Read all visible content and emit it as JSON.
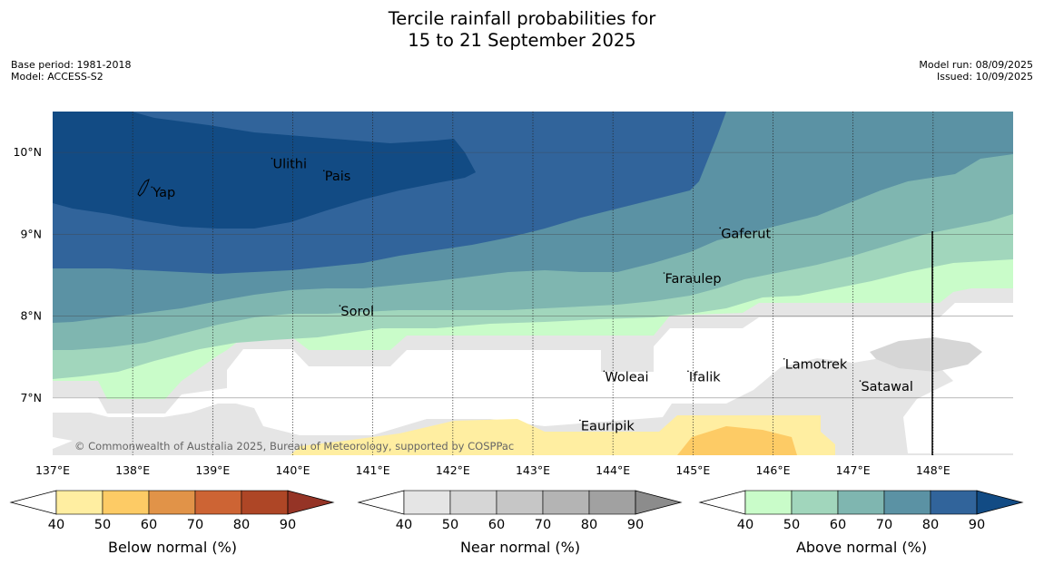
{
  "title": {
    "line1": "Tercile rainfall probabilities for",
    "line2": "15 to 21 September 2025"
  },
  "meta": {
    "base_period": "Base period: 1981-2018",
    "model": "Model: ACCESS-S2",
    "model_run": "Model run: 08/09/2025",
    "issued": "Issued: 10/09/2025"
  },
  "map": {
    "lon_range": [
      137,
      149
    ],
    "lat_range": [
      6.3,
      10.5
    ],
    "lon_ticks": [
      "137°E",
      "138°E",
      "139°E",
      "140°E",
      "141°E",
      "142°E",
      "143°E",
      "144°E",
      "145°E",
      "146°E",
      "147°E",
      "148°E"
    ],
    "lat_ticks": [
      "10°N",
      "9°N",
      "8°N",
      "7°N"
    ],
    "places": [
      {
        "name": "Ulithi",
        "lon": 139.75,
        "lat": 9.85
      },
      {
        "name": "Pais",
        "lon": 140.4,
        "lat": 9.7
      },
      {
        "name": "Yap",
        "lon": 138.25,
        "lat": 9.5
      },
      {
        "name": "Gaferut",
        "lon": 145.35,
        "lat": 9.0
      },
      {
        "name": "Faraulep",
        "lon": 144.65,
        "lat": 8.45
      },
      {
        "name": "Sorol",
        "lon": 140.6,
        "lat": 8.05
      },
      {
        "name": "Woleai",
        "lon": 143.9,
        "lat": 7.25
      },
      {
        "name": "Ifalik",
        "lon": 144.95,
        "lat": 7.25
      },
      {
        "name": "Lamotrek",
        "lon": 146.15,
        "lat": 7.4
      },
      {
        "name": "Satawal",
        "lon": 147.1,
        "lat": 7.13
      },
      {
        "name": "Eauripik",
        "lon": 143.6,
        "lat": 6.65
      }
    ],
    "copyright": "© Commonwealth of Australia 2025, Bureau of Meteorology, supported by COSPPac"
  },
  "legends": [
    {
      "name": "Below normal (%)",
      "ticks": [
        "40",
        "50",
        "60",
        "70",
        "80",
        "90"
      ],
      "colors": [
        "#ffeea1",
        "#fdcb65",
        "#e19348",
        "#cd6434",
        "#ae4626",
        "#953426"
      ]
    },
    {
      "name": "Near normal (%)",
      "ticks": [
        "40",
        "50",
        "60",
        "70",
        "80",
        "90"
      ],
      "colors": [
        "#e5e5e5",
        "#d6d6d6",
        "#c6c6c6",
        "#b4b4b4",
        "#a1a1a1",
        "#8c8c8c"
      ]
    },
    {
      "name": "Above normal (%)",
      "ticks": [
        "40",
        "50",
        "60",
        "70",
        "80",
        "90"
      ],
      "colors": [
        "#c9fcc9",
        "#a1d6bc",
        "#7fb6b0",
        "#5b92a4",
        "#31649b",
        "#124b84"
      ]
    }
  ]
}
